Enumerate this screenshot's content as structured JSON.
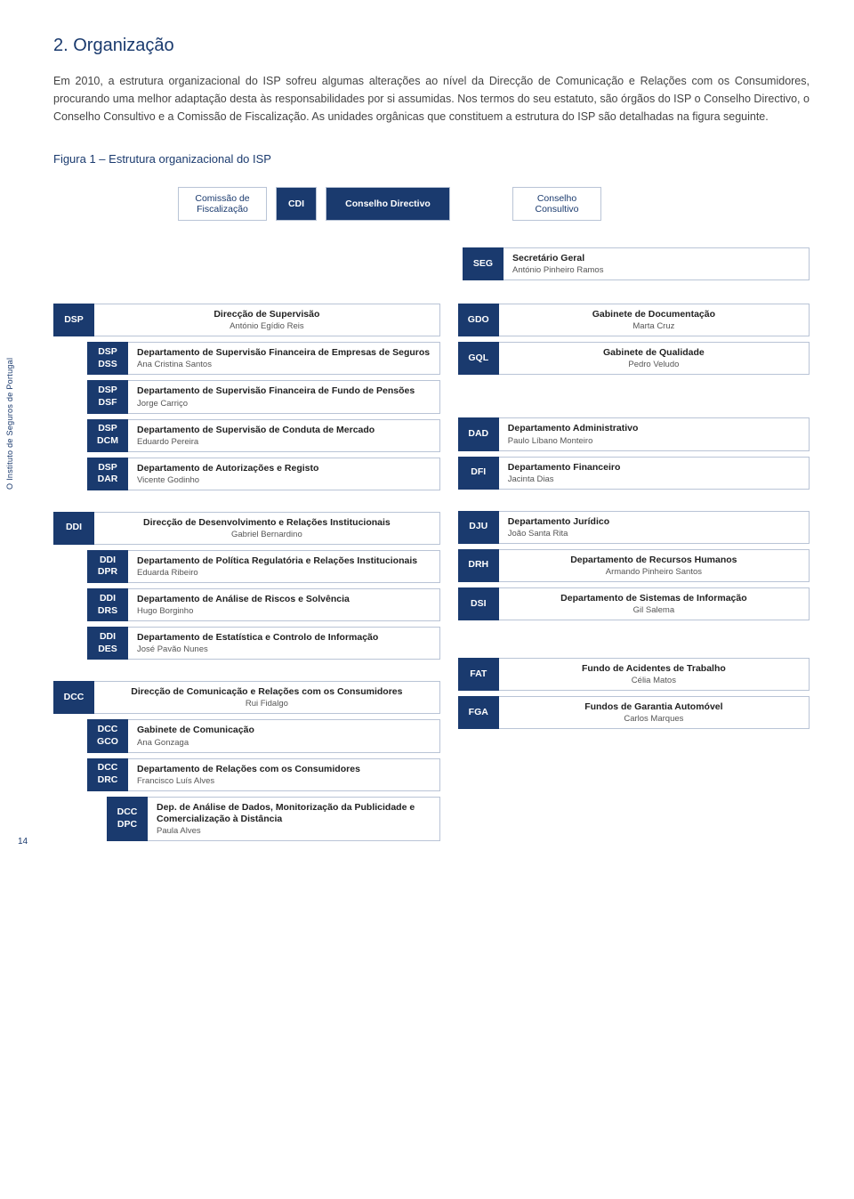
{
  "heading": "2. Organização",
  "para1": "Em 2010, a estrutura organizacional do ISP sofreu algumas alterações ao nível da Direcção de Comunicação e Relações com os Consumidores, procurando uma melhor adaptação desta às responsabilidades por si assumidas. Nos termos do seu estatuto, são órgãos do ISP o Conselho Directivo, o Conselho Consultivo e a Comissão de Fiscalização. As unidades orgânicas que constituem a estrutura do ISP são detalhadas na figura seguinte.",
  "figTitle": "Figura 1 – Estrutura organizacional do ISP",
  "sideLabel": "O Instituto de Seguros de Portugal",
  "pageNum": "14",
  "top": {
    "fisc": "Comissão de Fiscalização",
    "cdi": "CDI",
    "cdir": "Conselho Directivo",
    "cons": "Conselho Consultivo"
  },
  "seg": {
    "tag": "SEG",
    "t1": "Secretário Geral",
    "t2": "António Pinheiro Ramos"
  },
  "dsp": {
    "tag": "DSP",
    "t1": "Direcção de Supervisão",
    "t2": "António Egídio Reis"
  },
  "dsp_dss": {
    "tag1": "DSP",
    "tag2": "DSS",
    "t1": "Departamento de Supervisão Financeira de Empresas de Seguros",
    "t2": "Ana Cristina Santos"
  },
  "dsp_dsf": {
    "tag1": "DSP",
    "tag2": "DSF",
    "t1": "Departamento de Supervisão Financeira de Fundo de Pensões",
    "t2": "Jorge Carriço"
  },
  "dsp_dcm": {
    "tag1": "DSP",
    "tag2": "DCM",
    "t1": "Departamento de Supervisão de Conduta de Mercado",
    "t2": "Eduardo Pereira"
  },
  "dsp_dar": {
    "tag1": "DSP",
    "tag2": "DAR",
    "t1": "Departamento de Autorizações e Registo",
    "t2": "Vicente Godinho"
  },
  "ddi": {
    "tag": "DDI",
    "t1": "Direcção de Desenvolvimento e Relações Institucionais",
    "t2": "Gabriel Bernardino"
  },
  "ddi_dpr": {
    "tag1": "DDI",
    "tag2": "DPR",
    "t1": "Departamento de Política Regulatória e Relações Institucionais",
    "t2": "Eduarda Ribeiro"
  },
  "ddi_drs": {
    "tag1": "DDI",
    "tag2": "DRS",
    "t1": "Departamento de Análise de Riscos e Solvência",
    "t2": "Hugo Borginho"
  },
  "ddi_des": {
    "tag1": "DDI",
    "tag2": "DES",
    "t1": "Departamento de Estatística e Controlo de Informação",
    "t2": "José Pavão Nunes"
  },
  "dcc": {
    "tag": "DCC",
    "t1": "Direcção de Comunicação e Relações com os Consumidores",
    "t2": "Rui Fidalgo"
  },
  "dcc_gco": {
    "tag1": "DCC",
    "tag2": "GCO",
    "t1": "Gabinete de Comunicação",
    "t2": "Ana Gonzaga"
  },
  "dcc_drc": {
    "tag1": "DCC",
    "tag2": "DRC",
    "t1": "Departamento de Relações com os Consumidores",
    "t2": "Francisco Luís Alves"
  },
  "dcc_dpc": {
    "tag1": "DCC",
    "tag2": "DPC",
    "t1": "Dep. de Análise de Dados, Monitorização da Publicidade e Comercialização à Distância",
    "t2": "Paula Alves"
  },
  "gdo": {
    "tag": "GDO",
    "t1": "Gabinete de Documentação",
    "t2": "Marta Cruz"
  },
  "gql": {
    "tag": "GQL",
    "t1": "Gabinete de Qualidade",
    "t2": "Pedro Veludo"
  },
  "dad": {
    "tag": "DAD",
    "t1": "Departamento Administrativo",
    "t2": "Paulo Líbano Monteiro"
  },
  "dfi": {
    "tag": "DFI",
    "t1": "Departamento Financeiro",
    "t2": "Jacinta Dias"
  },
  "dju": {
    "tag": "DJU",
    "t1": "Departamento Jurídico",
    "t2": "João Santa Rita"
  },
  "drh": {
    "tag": "DRH",
    "t1": "Departamento de Recursos Humanos",
    "t2": "Armando Pinheiro Santos"
  },
  "dsi": {
    "tag": "DSI",
    "t1": "Departamento de Sistemas de Informação",
    "t2": "Gil Salema"
  },
  "fat": {
    "tag": "FAT",
    "t1": "Fundo de Acidentes de Trabalho",
    "t2": "Célia Matos"
  },
  "fga": {
    "tag": "FGA",
    "t1": "Fundos de Garantia Automóvel",
    "t2": "Carlos Marques"
  }
}
